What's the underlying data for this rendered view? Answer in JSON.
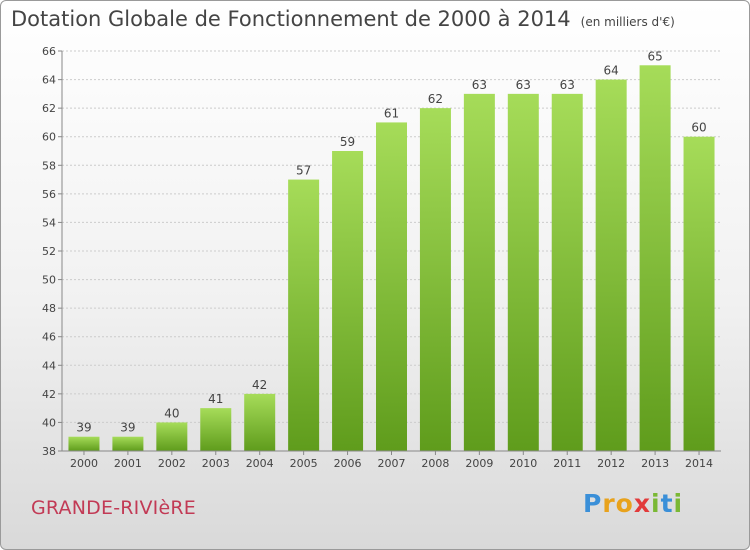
{
  "title": "Dotation Globale de Fonctionnement de 2000 à 2014",
  "unit": "(en milliers d'€)",
  "commune": "GRANDE-RIVIèRE",
  "logo": {
    "letters": [
      "P",
      "r",
      "o",
      "x",
      "i",
      "t",
      "i"
    ],
    "colors": [
      "#3a8fd8",
      "#e8a21c",
      "#e8a21c",
      "#e23a3a",
      "#7ab834",
      "#3a8fd8",
      "#7ab834"
    ]
  },
  "colors": {
    "bar_light": "#a6dc59",
    "bar_dark": "#5f9c1c",
    "grid": "#cccccc",
    "text": "#444444",
    "commune": "#c23a55"
  },
  "chart_data": {
    "type": "bar",
    "categories": [
      "2000",
      "2001",
      "2002",
      "2003",
      "2004",
      "2005",
      "2006",
      "2007",
      "2008",
      "2009",
      "2010",
      "2011",
      "2012",
      "2013",
      "2014"
    ],
    "values": [
      39,
      39,
      40,
      41,
      42,
      57,
      59,
      61,
      62,
      63,
      63,
      63,
      64,
      65,
      60
    ],
    "title": "Dotation Globale de Fonctionnement de 2000 à 2014",
    "ylim": [
      38,
      66
    ],
    "yticks": [
      38,
      40,
      42,
      44,
      46,
      48,
      50,
      52,
      54,
      56,
      58,
      60,
      62,
      64,
      66
    ],
    "grid": true
  }
}
